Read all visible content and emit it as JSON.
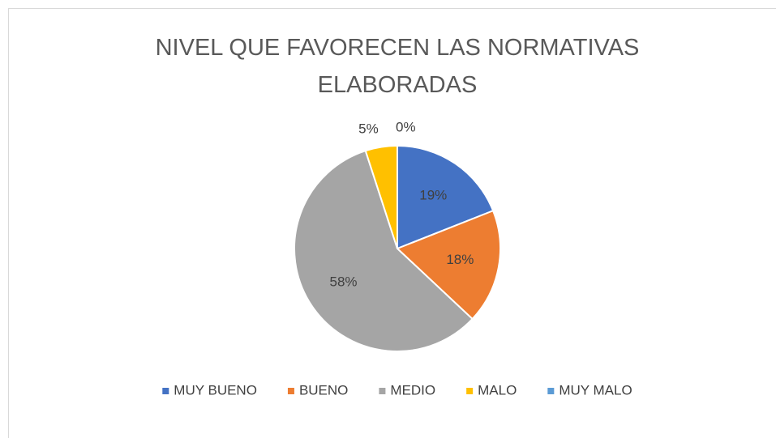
{
  "chart_data": {
    "type": "pie",
    "title": "NIVEL QUE FAVORECEN LAS NORMATIVAS ELABORADAS",
    "categories": [
      "MUY BUENO",
      "BUENO",
      "MEDIO",
      "MALO",
      "MUY MALO"
    ],
    "values": [
      19,
      18,
      58,
      5,
      0
    ],
    "value_labels": [
      "19%",
      "18%",
      "58%",
      "5%",
      "0%"
    ],
    "colors": [
      "#4472c4",
      "#ed7d31",
      "#a5a5a5",
      "#ffc000",
      "#5b9bd5"
    ],
    "legend": "bottom"
  }
}
